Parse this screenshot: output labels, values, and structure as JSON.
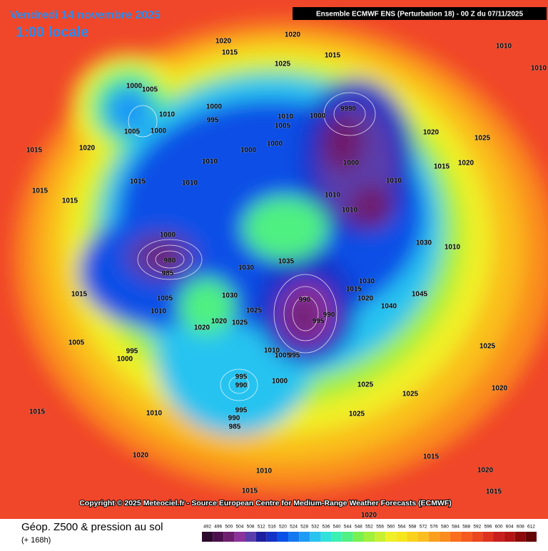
{
  "header": {
    "date": "Vendredi 14 novembre 2025",
    "local_time": "1:00 locale",
    "run_info": "Ensemble ECMWF ENS  (Perturbation 18)  - 00 Z du 07/11/2025"
  },
  "copyright": "Copyright © 2025 Meteociel.fr - Source European Centre for Medium-Range Weather Forecasts (ECMWF)",
  "legend": {
    "title": "Géop. Z500 & pression au sol",
    "lead_time": "(+ 168h)",
    "values": [
      492,
      496,
      500,
      504,
      508,
      512,
      516,
      520,
      524,
      528,
      532,
      536,
      540,
      544,
      548,
      552,
      556,
      560,
      564,
      568,
      572,
      576,
      580,
      584,
      588,
      592,
      596,
      600,
      604,
      608,
      612
    ],
    "colors": [
      "#2d0a2d",
      "#4b0f4b",
      "#6e1e6e",
      "#8c329b",
      "#5a3caa",
      "#1e1ea0",
      "#1432c8",
      "#0a50e6",
      "#1478f0",
      "#1e9bf5",
      "#28c3f0",
      "#32e1dc",
      "#3cf0b4",
      "#50f082",
      "#78f050",
      "#a0f03c",
      "#c8f032",
      "#f0f028",
      "#f5e61e",
      "#fad21e",
      "#fabe1e",
      "#faa01e",
      "#fa8c1e",
      "#fa6e1e",
      "#f55a1e",
      "#eb461e",
      "#dc321e",
      "#c81e1e",
      "#b41414",
      "#8c0a0a",
      "#640505"
    ]
  },
  "pressure_labels": [
    1020,
    1020,
    1015,
    1025,
    1015,
    1010,
    1010,
    1000,
    1005,
    1010,
    1000,
    995,
    1010,
    1005,
    1000,
    9990,
    1005,
    1000,
    1015,
    1020,
    1000,
    1000,
    1010,
    1000,
    1020,
    1025,
    1015,
    1020,
    1010,
    1010,
    1010,
    1015,
    1010,
    1015,
    1015,
    1030,
    1010,
    1000,
    980,
    985,
    1035,
    1030,
    1030,
    1015,
    1015,
    1005,
    1030,
    990,
    990,
    995,
    1045,
    1020,
    1040,
    1025,
    1020,
    1025,
    1020,
    1010,
    1005,
    995,
    1000,
    1010,
    1005,
    995,
    995,
    990,
    1000,
    1025,
    1025,
    1025,
    995,
    990,
    985,
    1015,
    1010,
    1025,
    1020,
    1015,
    1010,
    1020,
    1015,
    1020,
    1015,
    1020
  ]
}
